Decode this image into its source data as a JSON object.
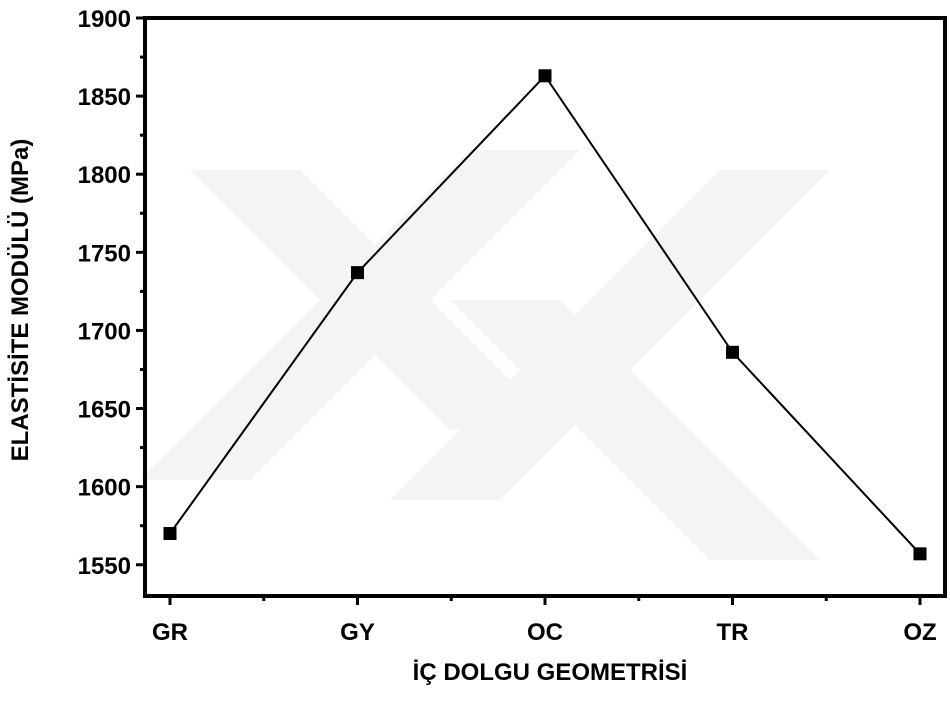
{
  "chart_data": {
    "type": "line",
    "x_label": "İÇ DOLGU GEOMETRİSİ",
    "y_label": "ELASTİSİTE MODÜLÜ (MPa)",
    "categories": [
      "GR",
      "GY",
      "OC",
      "TR",
      "OZ"
    ],
    "series": [
      {
        "name": "ELASTİSİTE MODÜLÜ",
        "color": "#000000",
        "values": [
          1570,
          1737,
          1863,
          1686,
          1557
        ]
      }
    ],
    "ylim": [
      1530,
      1900
    ],
    "yticks": [
      1550,
      1600,
      1650,
      1700,
      1750,
      1800,
      1850,
      1900
    ],
    "grid": false
  }
}
